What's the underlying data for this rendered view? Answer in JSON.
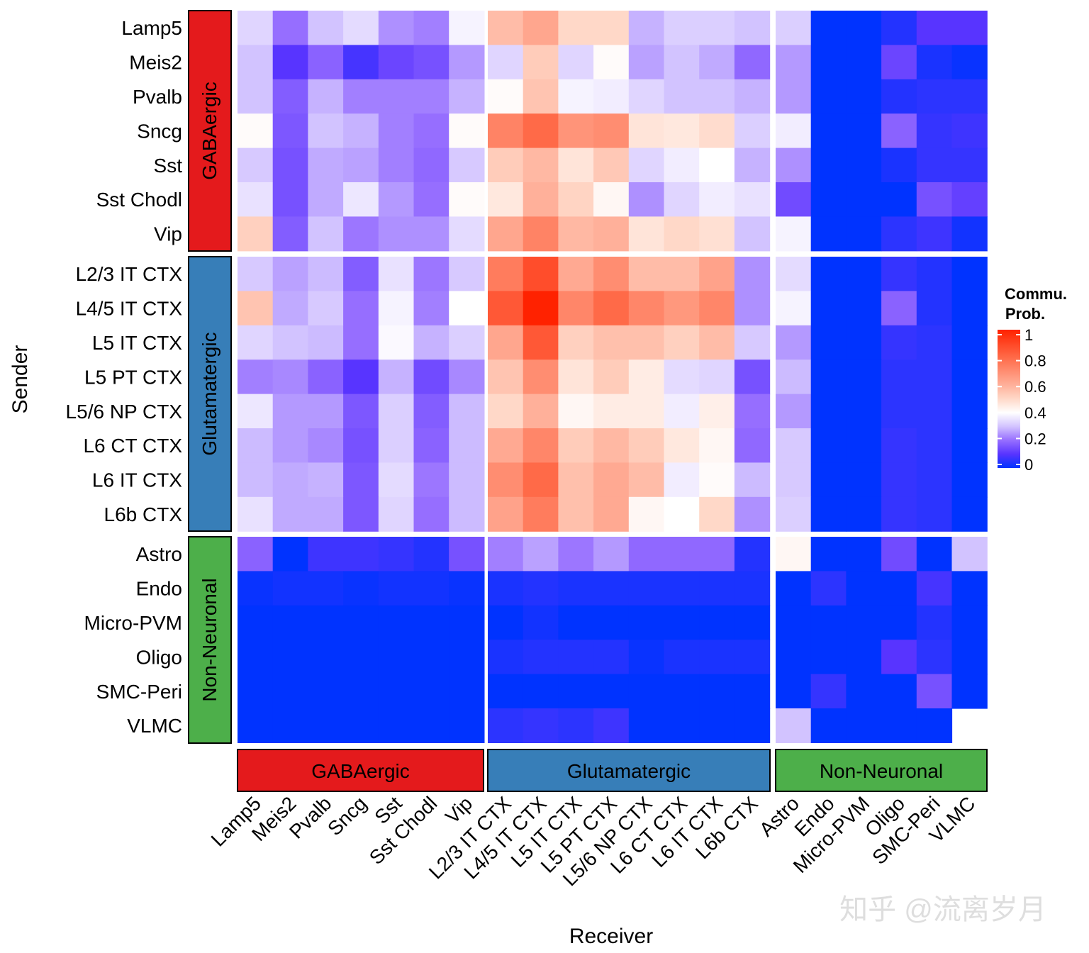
{
  "chart_data": {
    "type": "heatmap",
    "xlabel": "Receiver",
    "ylabel": "Sender",
    "legend": {
      "title_line1": "Commu.",
      "title_line2": "Prob.",
      "ticks": [
        "0",
        "0.2",
        "0.4",
        "0.6",
        "0.8",
        "1"
      ],
      "placement": "right",
      "range": [
        0,
        1
      ]
    },
    "color_scale": {
      "low": "#0033ff",
      "mid": "#ffffff",
      "mid_value": 0.4,
      "high": "#ff2200"
    },
    "groups": [
      {
        "name": "GABAergic",
        "color": "#e41a1c",
        "members": [
          "Lamp5",
          "Meis2",
          "Pvalb",
          "Sncg",
          "Sst",
          "Sst Chodl",
          "Vip"
        ]
      },
      {
        "name": "Glutamatergic",
        "color": "#377eb8",
        "members": [
          "L2/3 IT CTX",
          "L4/5 IT CTX",
          "L5 IT CTX",
          "L5 PT CTX",
          "L5/6 NP CTX",
          "L6 CT CTX",
          "L6 IT CTX",
          "L6b CTX"
        ]
      },
      {
        "name": "Non-Neuronal",
        "color": "#4daf4a",
        "members": [
          "Astro",
          "Endo",
          "Micro-PVM",
          "Oligo",
          "SMC-Peri",
          "VLMC"
        ]
      }
    ],
    "rows": [
      "Lamp5",
      "Meis2",
      "Pvalb",
      "Sncg",
      "Sst",
      "Sst Chodl",
      "Vip",
      "L2/3 IT CTX",
      "L4/5 IT CTX",
      "L5 IT CTX",
      "L5 PT CTX",
      "L5/6 NP CTX",
      "L6 CT CTX",
      "L6 IT CTX",
      "L6b CTX",
      "Astro",
      "Endo",
      "Micro-PVM",
      "Oligo",
      "SMC-Peri",
      "VLMC"
    ],
    "columns": [
      "Lamp5",
      "Meis2",
      "Pvalb",
      "Sncg",
      "Sst",
      "Sst Chodl",
      "Vip",
      "L2/3 IT CTX",
      "L4/5 IT CTX",
      "L5 IT CTX",
      "L5 PT CTX",
      "L5/6 NP CTX",
      "L6 CT CTX",
      "L6 IT CTX",
      "L6b CTX",
      "Astro",
      "Endo",
      "Micro-PVM",
      "Oligo",
      "SMC-Peri",
      "VLMC"
    ],
    "values": [
      [
        0.33,
        0.2,
        0.3,
        0.34,
        0.24,
        0.22,
        0.38,
        0.57,
        0.63,
        0.5,
        0.5,
        0.28,
        0.32,
        0.32,
        0.3,
        0.32,
        0,
        0,
        0.04,
        0.1,
        0.1
      ],
      [
        0.3,
        0.1,
        0.18,
        0.08,
        0.13,
        0.15,
        0.25,
        0.33,
        0.53,
        0.33,
        0.41,
        0.26,
        0.3,
        0.27,
        0.19,
        0.25,
        0,
        0,
        0.13,
        0.03,
        0.01
      ],
      [
        0.3,
        0.17,
        0.28,
        0.22,
        0.22,
        0.22,
        0.28,
        0.41,
        0.55,
        0.38,
        0.37,
        0.33,
        0.3,
        0.3,
        0.28,
        0.25,
        0,
        0,
        0.04,
        0.05,
        0.05
      ],
      [
        0.41,
        0.16,
        0.3,
        0.28,
        0.22,
        0.2,
        0.41,
        0.73,
        0.8,
        0.68,
        0.7,
        0.47,
        0.46,
        0.49,
        0.32,
        0.37,
        0,
        0,
        0.18,
        0.06,
        0.07
      ],
      [
        0.31,
        0.15,
        0.27,
        0.26,
        0.22,
        0.19,
        0.31,
        0.53,
        0.58,
        0.47,
        0.54,
        0.33,
        0.37,
        0.4,
        0.28,
        0.24,
        0,
        0,
        0.03,
        0.06,
        0.06
      ],
      [
        0.35,
        0.15,
        0.27,
        0.36,
        0.25,
        0.2,
        0.41,
        0.46,
        0.6,
        0.51,
        0.42,
        0.24,
        0.33,
        0.37,
        0.35,
        0.14,
        0,
        0,
        0,
        0.15,
        0.12
      ],
      [
        0.52,
        0.17,
        0.3,
        0.21,
        0.24,
        0.24,
        0.34,
        0.63,
        0.73,
        0.58,
        0.6,
        0.47,
        0.5,
        0.48,
        0.3,
        0.38,
        0,
        0,
        0.05,
        0.07,
        0.02
      ],
      [
        0.31,
        0.26,
        0.29,
        0.17,
        0.35,
        0.21,
        0.31,
        0.75,
        0.88,
        0.62,
        0.7,
        0.57,
        0.57,
        0.64,
        0.24,
        0.34,
        0,
        0,
        0.06,
        0.04,
        0
      ],
      [
        0.55,
        0.27,
        0.31,
        0.2,
        0.38,
        0.22,
        0.4,
        0.85,
        1.0,
        0.72,
        0.8,
        0.72,
        0.67,
        0.72,
        0.24,
        0.38,
        0,
        0,
        0.18,
        0.04,
        0
      ],
      [
        0.33,
        0.3,
        0.29,
        0.2,
        0.39,
        0.28,
        0.32,
        0.63,
        0.85,
        0.52,
        0.56,
        0.56,
        0.52,
        0.57,
        0.31,
        0.25,
        0,
        0,
        0.06,
        0.05,
        0
      ],
      [
        0.22,
        0.23,
        0.18,
        0.1,
        0.28,
        0.14,
        0.23,
        0.55,
        0.7,
        0.47,
        0.53,
        0.45,
        0.34,
        0.33,
        0.15,
        0.29,
        0,
        0,
        0.05,
        0.05,
        0
      ],
      [
        0.36,
        0.25,
        0.25,
        0.16,
        0.32,
        0.17,
        0.29,
        0.5,
        0.6,
        0.42,
        0.45,
        0.45,
        0.37,
        0.44,
        0.2,
        0.25,
        0,
        0,
        0.05,
        0.05,
        0
      ],
      [
        0.29,
        0.25,
        0.23,
        0.15,
        0.32,
        0.18,
        0.29,
        0.62,
        0.72,
        0.53,
        0.58,
        0.53,
        0.46,
        0.42,
        0.19,
        0.31,
        0,
        0,
        0.06,
        0.05,
        0
      ],
      [
        0.29,
        0.27,
        0.28,
        0.16,
        0.34,
        0.21,
        0.29,
        0.7,
        0.8,
        0.56,
        0.62,
        0.57,
        0.37,
        0.41,
        0.29,
        0.31,
        0,
        0,
        0.06,
        0.05,
        0
      ],
      [
        0.35,
        0.27,
        0.27,
        0.16,
        0.33,
        0.2,
        0.29,
        0.64,
        0.75,
        0.56,
        0.62,
        0.42,
        0.4,
        0.5,
        0.24,
        0.32,
        0,
        0,
        0.06,
        0.05,
        0
      ],
      [
        0.18,
        0,
        0.07,
        0.07,
        0.06,
        0.04,
        0.15,
        0.22,
        0.26,
        0.21,
        0.25,
        0.19,
        0.19,
        0.19,
        0.04,
        0.42,
        0,
        0,
        0.14,
        0,
        0.3
      ],
      [
        0.01,
        0.02,
        0.02,
        0.01,
        0.02,
        0.02,
        0.01,
        0.03,
        0.04,
        0.03,
        0.03,
        0.03,
        0.03,
        0.03,
        0.03,
        0,
        0.05,
        0,
        0,
        0.08,
        0
      ],
      [
        0,
        0,
        0,
        0,
        0,
        0,
        0,
        0,
        0.02,
        0,
        0,
        0,
        0,
        0,
        0,
        0,
        0,
        0,
        0,
        0.04,
        0
      ],
      [
        0,
        0,
        0,
        0,
        0,
        0,
        0,
        0.03,
        0.04,
        0.04,
        0.04,
        0.01,
        0.03,
        0.03,
        0.03,
        0,
        0,
        0,
        0.1,
        0.05,
        0
      ],
      [
        0,
        0,
        0,
        0,
        0,
        0,
        0,
        0,
        0,
        0,
        0,
        0,
        0,
        0,
        0,
        0,
        0.06,
        0,
        0,
        0.15,
        0
      ],
      [
        0,
        0,
        0,
        0,
        0,
        0,
        0,
        0.05,
        0.06,
        0.05,
        0.07,
        0,
        0,
        0,
        0,
        0.3,
        0,
        0,
        0,
        0,
        null
      ]
    ]
  },
  "watermark": "知乎 @流离岁月"
}
